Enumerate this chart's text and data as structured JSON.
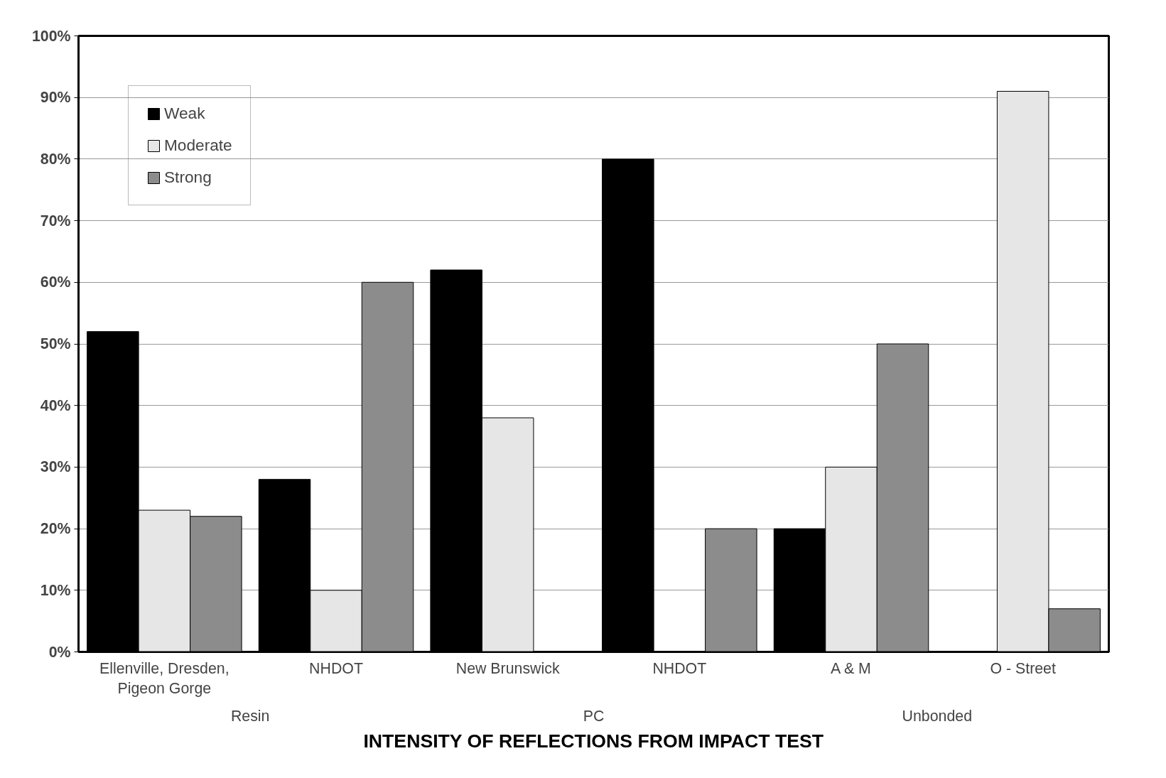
{
  "chart_data": {
    "type": "bar",
    "xlabel": "INTENSITY OF REFLECTIONS FROM IMPACT TEST",
    "categories": [
      "Ellenville, Dresden,\nPigeon Gorge",
      "NHDOT",
      "New Brunswick",
      "NHDOT",
      "A & M",
      "O - Street"
    ],
    "series": [
      {
        "name": "Weak",
        "color": "#000000",
        "values": [
          52,
          28,
          62,
          80,
          20,
          null
        ]
      },
      {
        "name": "Moderate",
        "color": "#e6e6e6",
        "values": [
          23,
          10,
          38,
          null,
          30,
          91
        ]
      },
      {
        "name": "Strong",
        "color": "#8c8c8c",
        "values": [
          22,
          60,
          null,
          20,
          50,
          7
        ]
      }
    ],
    "annotations": [
      "Resin",
      "PC",
      "Unbonded"
    ],
    "ylim": [
      0,
      100
    ],
    "yticks": [
      {
        "value": 0,
        "label": "0%"
      },
      {
        "value": 10,
        "label": "10%"
      },
      {
        "value": 20,
        "label": "20%"
      },
      {
        "value": 30,
        "label": "30%"
      },
      {
        "value": 40,
        "label": "40%"
      },
      {
        "value": 50,
        "label": "50%"
      },
      {
        "value": 60,
        "label": "60%"
      },
      {
        "value": 70,
        "label": "70%"
      },
      {
        "value": 80,
        "label": "80%"
      },
      {
        "value": 90,
        "label": "90%"
      },
      {
        "value": 100,
        "label": "100%"
      }
    ],
    "grid": "y",
    "legend": "top left"
  }
}
